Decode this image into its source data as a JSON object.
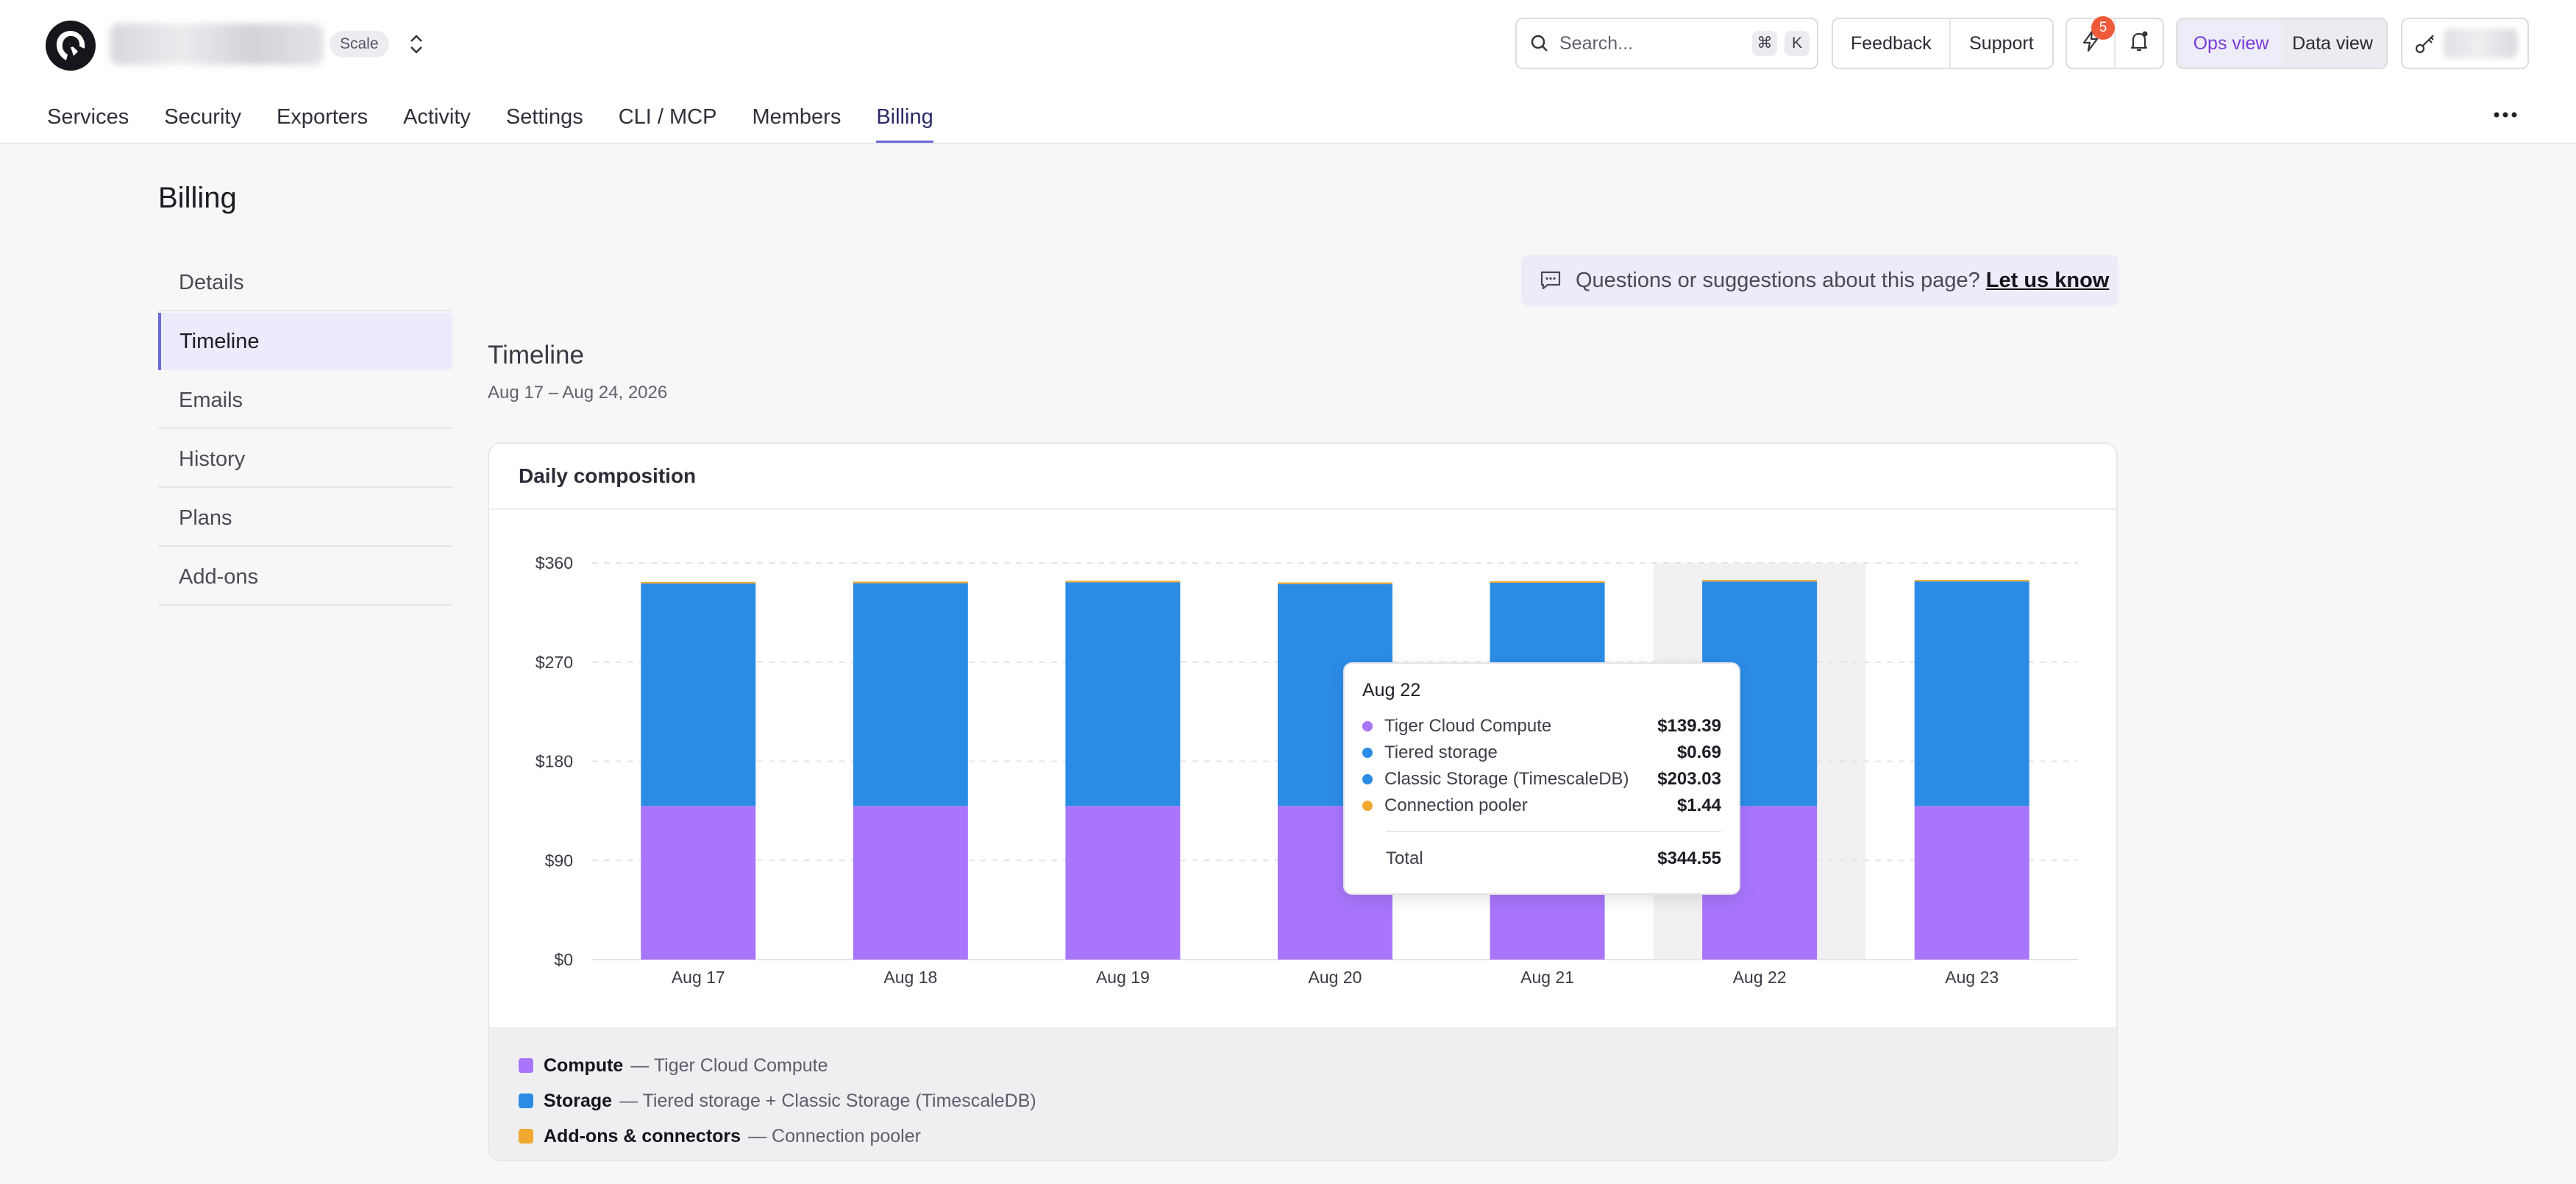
{
  "header": {
    "plan_badge": "Scale",
    "search": {
      "placeholder": "Search...",
      "shortcut": [
        "⌘",
        "K"
      ]
    },
    "help_links": [
      "Feedback",
      "Support"
    ],
    "activity_badge_count": "5",
    "views": [
      {
        "label": "Ops view",
        "active": true
      },
      {
        "label": "Data view",
        "active": false
      }
    ]
  },
  "nav": {
    "tabs": [
      {
        "label": "Services",
        "active": false
      },
      {
        "label": "Security",
        "active": false
      },
      {
        "label": "Exporters",
        "active": false
      },
      {
        "label": "Activity",
        "active": false
      },
      {
        "label": "Settings",
        "active": false
      },
      {
        "label": "CLI / MCP",
        "active": false
      },
      {
        "label": "Members",
        "active": false
      },
      {
        "label": "Billing",
        "active": true
      }
    ]
  },
  "page": {
    "title": "Billing"
  },
  "sidebar": {
    "items": [
      {
        "label": "Details",
        "active": false
      },
      {
        "label": "Timeline",
        "active": true
      },
      {
        "label": "Emails",
        "active": false
      },
      {
        "label": "History",
        "active": false
      },
      {
        "label": "Plans",
        "active": false
      },
      {
        "label": "Add-ons",
        "active": false
      }
    ]
  },
  "feedback": {
    "text": "Questions or suggestions about this page?",
    "link": "Let us know"
  },
  "section": {
    "title": "Timeline",
    "date_range": "Aug 17 – Aug 24, 2026"
  },
  "card": {
    "title": "Daily composition"
  },
  "colors": {
    "compute": "#a875fb",
    "storage": "#2b8ce6",
    "addons": "#f0a830",
    "accent": "#6b6bd6"
  },
  "chart_data": {
    "type": "bar",
    "stacked": true,
    "categories": [
      "Aug 17",
      "Aug 18",
      "Aug 19",
      "Aug 20",
      "Aug 21",
      "Aug 22",
      "Aug 23"
    ],
    "series": [
      {
        "name": "Compute",
        "values": [
          139.39,
          139.39,
          139.39,
          139.39,
          139.39,
          139.39,
          139.39
        ]
      },
      {
        "name": "Storage",
        "values": [
          202.0,
          202.2,
          203.0,
          201.5,
          202.6,
          203.72,
          203.8
        ]
      },
      {
        "name": "Add-ons & connectors",
        "values": [
          1.4,
          1.44,
          1.44,
          1.44,
          1.44,
          1.44,
          1.44
        ]
      }
    ],
    "ylim": [
      0,
      360
    ],
    "yticks": [
      0,
      90,
      180,
      270,
      360
    ],
    "ytick_labels": [
      "$0",
      "$90",
      "$180",
      "$270",
      "$360"
    ],
    "highlighted_category": "Aug 22",
    "grid": true
  },
  "legend": [
    {
      "name": "Compute",
      "desc": "— Tiger Cloud Compute",
      "color": "#a875fb"
    },
    {
      "name": "Storage",
      "desc": "— Tiered storage + Classic Storage (TimescaleDB)",
      "color": "#2b8ce6"
    },
    {
      "name": "Add-ons & connectors",
      "desc": "— Connection pooler",
      "color": "#f0a830"
    }
  ],
  "tooltip": {
    "title": "Aug 22",
    "rows": [
      {
        "name": "Tiger Cloud Compute",
        "value": "$139.39",
        "color": "#a875fb"
      },
      {
        "name": "Tiered storage",
        "value": "$0.69",
        "color": "#2b8ce6"
      },
      {
        "name": "Classic Storage (TimescaleDB)",
        "value": "$203.03",
        "color": "#2b8ce6"
      },
      {
        "name": "Connection pooler",
        "value": "$1.44",
        "color": "#f0a830"
      }
    ],
    "total_label": "Total",
    "total_value": "$344.55"
  }
}
